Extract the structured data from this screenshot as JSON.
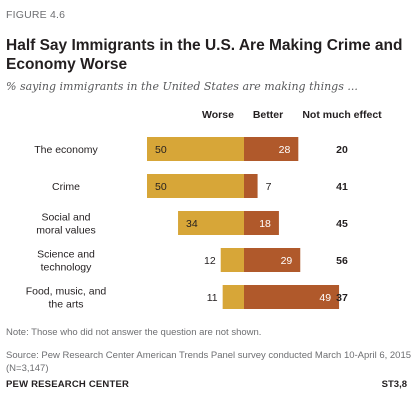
{
  "figure_label": "FIGURE 4.6",
  "title": "Half Say Immigrants in the U.S. Are Making Crime and Economy Worse",
  "subtitle": "% saying immigrants in the United States are making things ...",
  "note": "Note: Those who did not answer the question are not shown.",
  "source": "Source: Pew Research Center American Trends Panel survey conducted March 10-April 6, 2015 (N=3,147)",
  "org": "PEW RESEARCH CENTER",
  "code": "ST3,8",
  "colors": {
    "worse": "#d7a638",
    "better": "#b0592b",
    "text": "#231f20"
  },
  "chart_data": {
    "type": "bar",
    "categories": [
      "The economy",
      "Crime",
      "Social and moral values",
      "Science and technology",
      "Food, music, and the arts"
    ],
    "category_lines": [
      [
        "The economy"
      ],
      [
        "Crime"
      ],
      [
        "Social and",
        "moral values"
      ],
      [
        "Science and",
        "technology"
      ],
      [
        "Food, music, and",
        "the arts"
      ]
    ],
    "series": [
      {
        "name": "Worse",
        "values": [
          50,
          50,
          34,
          12,
          11
        ]
      },
      {
        "name": "Better",
        "values": [
          28,
          7,
          18,
          29,
          49
        ]
      }
    ],
    "extra_column": {
      "name": "Not much effect",
      "values": [
        20,
        41,
        45,
        56,
        37
      ]
    }
  }
}
